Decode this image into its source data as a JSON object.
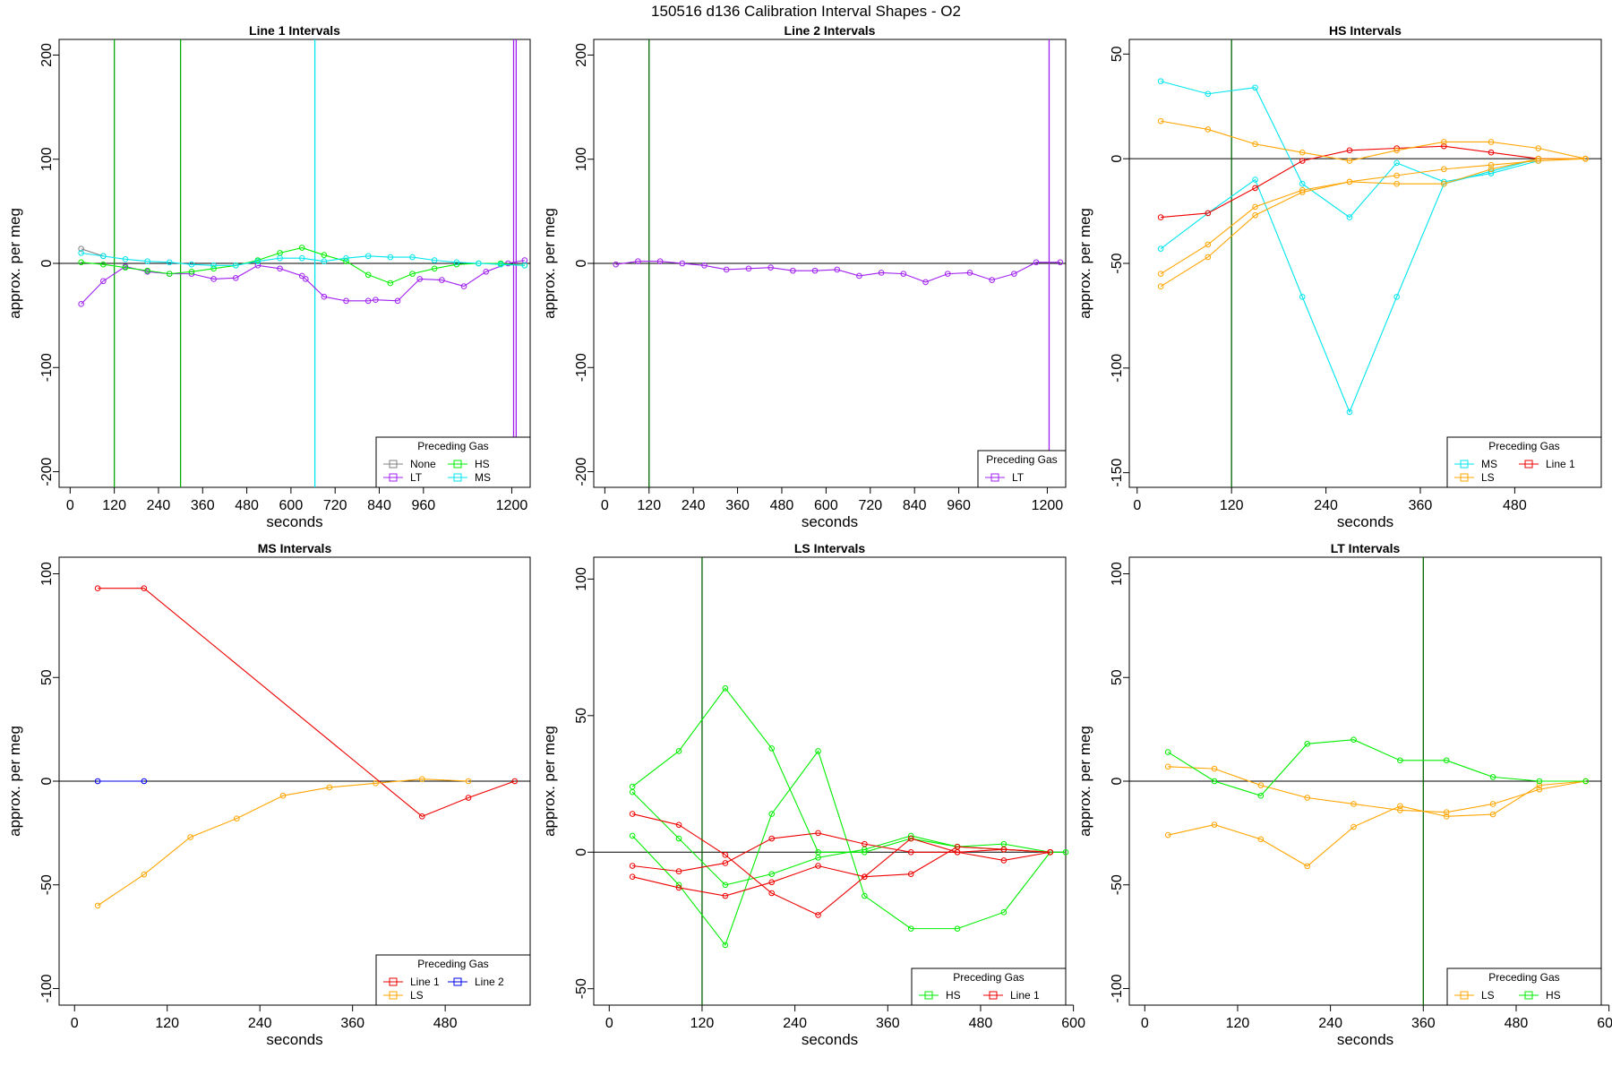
{
  "page_title": "150516   d136   Calibration Interval Shapes - O2",
  "legend_title": "Preceding Gas",
  "colors": {
    "None": "#808080",
    "LT": "#a020f0",
    "HS": "#00ee00",
    "MS": "#00e5ee",
    "LS": "#ffa500",
    "Line 1": "#ee0000",
    "Line 2": "#0000ee",
    "vline_green": "#00aa00",
    "vline_darkgreen": "#006400",
    "axis": "#000000"
  },
  "chart_data": [
    {
      "type": "line",
      "title": "Line 1 Intervals",
      "xlabel": "seconds",
      "ylabel": "approx. per meg",
      "xlim": [
        -30,
        1250
      ],
      "ylim": [
        -215,
        215
      ],
      "xticks": [
        0,
        120,
        240,
        360,
        480,
        600,
        720,
        840,
        960,
        1200
      ],
      "yticks": [
        -200,
        -100,
        0,
        100,
        200
      ],
      "hline": 0,
      "vlines": [
        {
          "x": 120,
          "color": "vline_green"
        },
        {
          "x": 300,
          "color": "vline_green"
        },
        {
          "x": 665,
          "color": "MS"
        },
        {
          "x": 1205,
          "color": "LT"
        },
        {
          "x": 1212,
          "color": "LT"
        }
      ],
      "legend_loc": "bottom-right",
      "legend": [
        "None",
        "HS",
        "LT",
        "MS"
      ],
      "legend_cols": 2,
      "series": [
        {
          "name": "None",
          "x": [
            30,
            90
          ],
          "y": [
            14,
            7
          ]
        },
        {
          "name": "LT",
          "x": [
            30,
            90,
            150,
            210,
            270,
            330,
            390,
            450,
            510,
            570,
            630,
            640,
            690,
            750,
            810,
            830,
            890,
            950,
            1010,
            1070,
            1130,
            1190,
            1235
          ],
          "y": [
            -39,
            -17,
            -3,
            -8,
            -10,
            -10,
            -15,
            -14,
            -2,
            -5,
            -12,
            -15,
            -32,
            -36,
            -36,
            -35,
            -36,
            -15,
            -16,
            -22,
            -8,
            0,
            3
          ]
        },
        {
          "name": "HS",
          "x": [
            30,
            90,
            150,
            210,
            270,
            330,
            390,
            450,
            510,
            570,
            630,
            690,
            750,
            810,
            870,
            930,
            990,
            1050,
            1110,
            1170,
            1235
          ],
          "y": [
            1,
            -1,
            -4,
            -7,
            -10,
            -8,
            -5,
            -2,
            3,
            10,
            15,
            8,
            2,
            -11,
            -19,
            -10,
            -5,
            -1,
            0,
            0,
            -2
          ]
        },
        {
          "name": "MS",
          "x": [
            30,
            90,
            150,
            210,
            270,
            330,
            390,
            450,
            510,
            570,
            630,
            690,
            750,
            810,
            870,
            930,
            990,
            1050,
            1110,
            1170,
            1235
          ],
          "y": [
            10,
            7,
            4,
            2,
            1,
            -1,
            -2,
            -2,
            2,
            5,
            5,
            2,
            5,
            7,
            6,
            6,
            3,
            1,
            0,
            -1,
            -2
          ]
        }
      ]
    },
    {
      "type": "line",
      "title": "Line 2 Intervals",
      "xlabel": "seconds",
      "ylabel": "approx. per meg",
      "xlim": [
        -30,
        1250
      ],
      "ylim": [
        -215,
        215
      ],
      "xticks": [
        0,
        120,
        240,
        360,
        480,
        600,
        720,
        840,
        960,
        1200
      ],
      "yticks": [
        -200,
        -100,
        0,
        100,
        200
      ],
      "hline": 0,
      "vlines": [
        {
          "x": 120,
          "color": "vline_darkgreen"
        },
        {
          "x": 1205,
          "color": "LT"
        }
      ],
      "legend_loc": "bottom-right",
      "legend": [
        "LT"
      ],
      "legend_cols": 1,
      "series": [
        {
          "name": "LT",
          "x": [
            30,
            90,
            150,
            210,
            270,
            330,
            390,
            450,
            510,
            570,
            630,
            690,
            750,
            810,
            870,
            930,
            990,
            1050,
            1110,
            1170,
            1235
          ],
          "y": [
            -1,
            2,
            2,
            0,
            -2,
            -6,
            -5,
            -4,
            -7,
            -7,
            -6,
            -12,
            -9,
            -10,
            -18,
            -10,
            -9,
            -16,
            -10,
            1,
            1
          ]
        }
      ]
    },
    {
      "type": "line",
      "title": "HS Intervals",
      "xlabel": "seconds",
      "ylabel": "approx. per meg",
      "xlim": [
        -10,
        590
      ],
      "ylim": [
        -157,
        57
      ],
      "xticks": [
        0,
        120,
        240,
        360,
        480
      ],
      "yticks": [
        -150,
        -100,
        -50,
        0,
        50
      ],
      "hline": 0,
      "vlines": [
        {
          "x": 120,
          "color": "vline_darkgreen"
        }
      ],
      "legend_loc": "bottom-right",
      "legend": [
        "MS",
        "Line 1",
        "LS"
      ],
      "legend_cols": 2,
      "series": [
        {
          "name": "MS",
          "x": [
            30,
            90,
            150,
            210,
            270,
            330,
            390,
            450,
            510
          ],
          "y": [
            37,
            31,
            34,
            -12,
            -28,
            -2,
            -11,
            -7,
            -1
          ]
        },
        {
          "name": "MS",
          "x": [
            30,
            90,
            150,
            210,
            270,
            330,
            390,
            450,
            510
          ],
          "y": [
            -43,
            -26,
            -10,
            -66,
            -121,
            -66,
            -12,
            -6,
            0
          ]
        },
        {
          "name": "Line 1",
          "x": [
            30,
            90,
            150,
            210,
            270,
            330,
            390,
            450,
            510,
            570
          ],
          "y": [
            -28,
            -26,
            -14,
            -1,
            4,
            5,
            6,
            3,
            0,
            0
          ]
        },
        {
          "name": "LS",
          "x": [
            30,
            90,
            150,
            210,
            270,
            330,
            390,
            450,
            510,
            570
          ],
          "y": [
            18,
            14,
            7,
            3,
            -1,
            4,
            8,
            8,
            5,
            0
          ]
        },
        {
          "name": "LS",
          "x": [
            30,
            90,
            150,
            210,
            270,
            330,
            390,
            450,
            510,
            570
          ],
          "y": [
            -55,
            -41,
            -23,
            -15,
            -11,
            -12,
            -12,
            -5,
            0,
            0
          ]
        },
        {
          "name": "LS",
          "x": [
            30,
            90,
            150,
            210,
            270,
            330,
            390,
            450,
            510,
            570
          ],
          "y": [
            -61,
            -47,
            -27,
            -16,
            -11,
            -8,
            -5,
            -3,
            -1,
            0
          ]
        }
      ]
    },
    {
      "type": "line",
      "title": "MS Intervals",
      "xlabel": "seconds",
      "ylabel": "approx. per meg",
      "xlim": [
        -20,
        590
      ],
      "ylim": [
        -108,
        108
      ],
      "xticks": [
        0,
        120,
        240,
        360,
        480
      ],
      "yticks": [
        -100,
        -50,
        0,
        50,
        100
      ],
      "hline": 0,
      "vlines": [],
      "legend_loc": "bottom-right",
      "legend": [
        "Line 1",
        "Line 2",
        "LS"
      ],
      "legend_cols": 2,
      "series": [
        {
          "name": "Line 1",
          "x": [
            30,
            90,
            450,
            510,
            570
          ],
          "y": [
            93,
            93,
            -17,
            -8,
            0
          ]
        },
        {
          "name": "Line 2",
          "x": [
            30,
            90
          ],
          "y": [
            0,
            0
          ]
        },
        {
          "name": "LS",
          "x": [
            30,
            90,
            150,
            210,
            270,
            330,
            390,
            450,
            510
          ],
          "y": [
            -60,
            -45,
            -27,
            -18,
            -7,
            -3,
            -1,
            1,
            0
          ]
        }
      ]
    },
    {
      "type": "line",
      "title": "LS Intervals",
      "xlabel": "seconds",
      "ylabel": "approx. per meg",
      "xlim": [
        -20,
        590
      ],
      "ylim": [
        -56,
        108
      ],
      "xticks": [
        0,
        120,
        240,
        360,
        480,
        600
      ],
      "yticks": [
        -50,
        0,
        50,
        100
      ],
      "hline": 0,
      "vlines": [
        {
          "x": 120,
          "color": "vline_darkgreen"
        }
      ],
      "legend_loc": "bottom-right",
      "legend": [
        "HS",
        "Line 1"
      ],
      "legend_cols": 2,
      "series": [
        {
          "name": "HS",
          "x": [
            30,
            90,
            150,
            210,
            270,
            330,
            390,
            450,
            510,
            570,
            590
          ],
          "y": [
            24,
            37,
            60,
            38,
            0,
            0,
            5,
            2,
            3,
            0,
            0
          ]
        },
        {
          "name": "HS",
          "x": [
            30,
            90,
            150,
            210,
            270,
            330,
            390,
            450,
            510,
            570
          ],
          "y": [
            22,
            5,
            -12,
            -8,
            -2,
            1,
            6,
            2,
            1,
            0
          ]
        },
        {
          "name": "HS",
          "x": [
            30,
            90,
            150,
            210,
            270,
            330,
            390,
            450,
            510,
            570
          ],
          "y": [
            6,
            -12,
            -34,
            14,
            37,
            -16,
            -28,
            -28,
            -22,
            0
          ]
        },
        {
          "name": "Line 1",
          "x": [
            30,
            90,
            150,
            210,
            270,
            330,
            390,
            450,
            510,
            570
          ],
          "y": [
            14,
            10,
            -1,
            -15,
            -23,
            -9,
            5,
            0,
            1,
            0
          ]
        },
        {
          "name": "Line 1",
          "x": [
            30,
            90,
            150,
            210,
            270,
            330,
            390,
            450,
            510,
            570
          ],
          "y": [
            -5,
            -7,
            -4,
            5,
            7,
            3,
            0,
            0,
            -3,
            0
          ]
        },
        {
          "name": "Line 1",
          "x": [
            30,
            90,
            150,
            210,
            270,
            330,
            390,
            450,
            510,
            570
          ],
          "y": [
            -9,
            -13,
            -16,
            -11,
            -5,
            -9,
            -8,
            2,
            1,
            0
          ]
        }
      ]
    },
    {
      "type": "line",
      "title": "LT Intervals",
      "xlabel": "seconds",
      "ylabel": "approx. per meg",
      "xlim": [
        -20,
        590
      ],
      "ylim": [
        -108,
        108
      ],
      "xticks": [
        0,
        120,
        240,
        360,
        480,
        600
      ],
      "yticks": [
        -100,
        -50,
        0,
        50,
        100
      ],
      "hline": 0,
      "vlines": [
        {
          "x": 360,
          "color": "vline_darkgreen"
        }
      ],
      "legend_loc": "bottom-right",
      "legend": [
        "LS",
        "HS"
      ],
      "legend_cols": 2,
      "series": [
        {
          "name": "LS",
          "x": [
            30,
            90,
            150,
            210,
            270,
            330,
            390,
            450,
            510,
            570
          ],
          "y": [
            7,
            6,
            -2,
            -8,
            -11,
            -14,
            -15,
            -11,
            -4,
            0
          ]
        },
        {
          "name": "LS",
          "x": [
            30,
            90,
            150,
            210,
            270,
            330,
            390,
            450,
            510,
            570
          ],
          "y": [
            -26,
            -21,
            -28,
            -41,
            -22,
            -12,
            -17,
            -16,
            -2,
            0
          ]
        },
        {
          "name": "HS",
          "x": [
            30,
            90,
            150,
            210,
            270,
            330,
            390,
            450,
            510,
            570
          ],
          "y": [
            14,
            0,
            -7,
            18,
            20,
            10,
            10,
            2,
            0,
            0
          ]
        }
      ]
    }
  ]
}
